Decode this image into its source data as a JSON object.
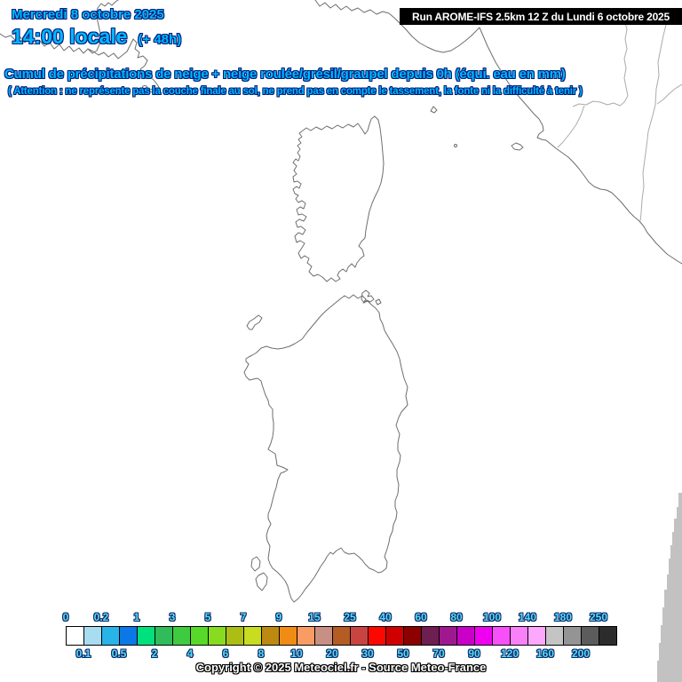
{
  "header": {
    "date": "Mercredi 8 octobre 2025",
    "time": "14:00 locale",
    "lead_time": "(+ 48h)",
    "run_info": "Run AROME-IFS 2.5km 12 Z du Lundi 6 octobre 2025"
  },
  "map_title": {
    "main": "Cumul de précipitations de neige + neige roulée/grésil/graupel depuis 0h (équi. eau en mm)",
    "warning": "( Attention : ne représente pas la couche finale au sol, ne prend pas en compte le tassement, la fonte ni la difficulté à tenir )"
  },
  "legend": {
    "top_labels": [
      "0",
      "0.2",
      "1",
      "3",
      "5",
      "7",
      "9",
      "15",
      "25",
      "40",
      "60",
      "80",
      "100",
      "140",
      "180",
      "250"
    ],
    "bottom_labels": [
      "0.1",
      "0.5",
      "2",
      "4",
      "6",
      "8",
      "10",
      "20",
      "30",
      "50",
      "70",
      "90",
      "120",
      "160",
      "200"
    ],
    "box_colors": [
      "#FFFFFF",
      "#A8DCF0",
      "#28B4E8",
      "#0A78E6",
      "#00E07C",
      "#30BC5A",
      "#3FCB3F",
      "#58D828",
      "#88DC20",
      "#ACBE14",
      "#C8DC20",
      "#BC8A10",
      "#F08C14",
      "#F89C64",
      "#C89084",
      "#B45C24",
      "#C84440",
      "#FC0800",
      "#D00000",
      "#8C0000",
      "#6E1E50",
      "#A01890",
      "#C800C8",
      "#F000F0",
      "#F850F8",
      "#F880F8",
      "#FCA8FC",
      "#C4C4C4",
      "#949494",
      "#5C5C5C",
      "#2C2C2C"
    ]
  },
  "footer": {
    "copyright": "Copyright © 2025 Meteociel.fr - Source Meteo-France"
  },
  "colors": {
    "headline_text": "#00B8FF",
    "headline_outline": "#001F7A",
    "legend_label_text": "#55DCF0",
    "run_box_bg": "#000000",
    "run_box_text": "#FFFFFF",
    "coastline": "#6E6E6E",
    "admin_border": "#ABABAB",
    "domain_edge": "#C2C2C2"
  }
}
